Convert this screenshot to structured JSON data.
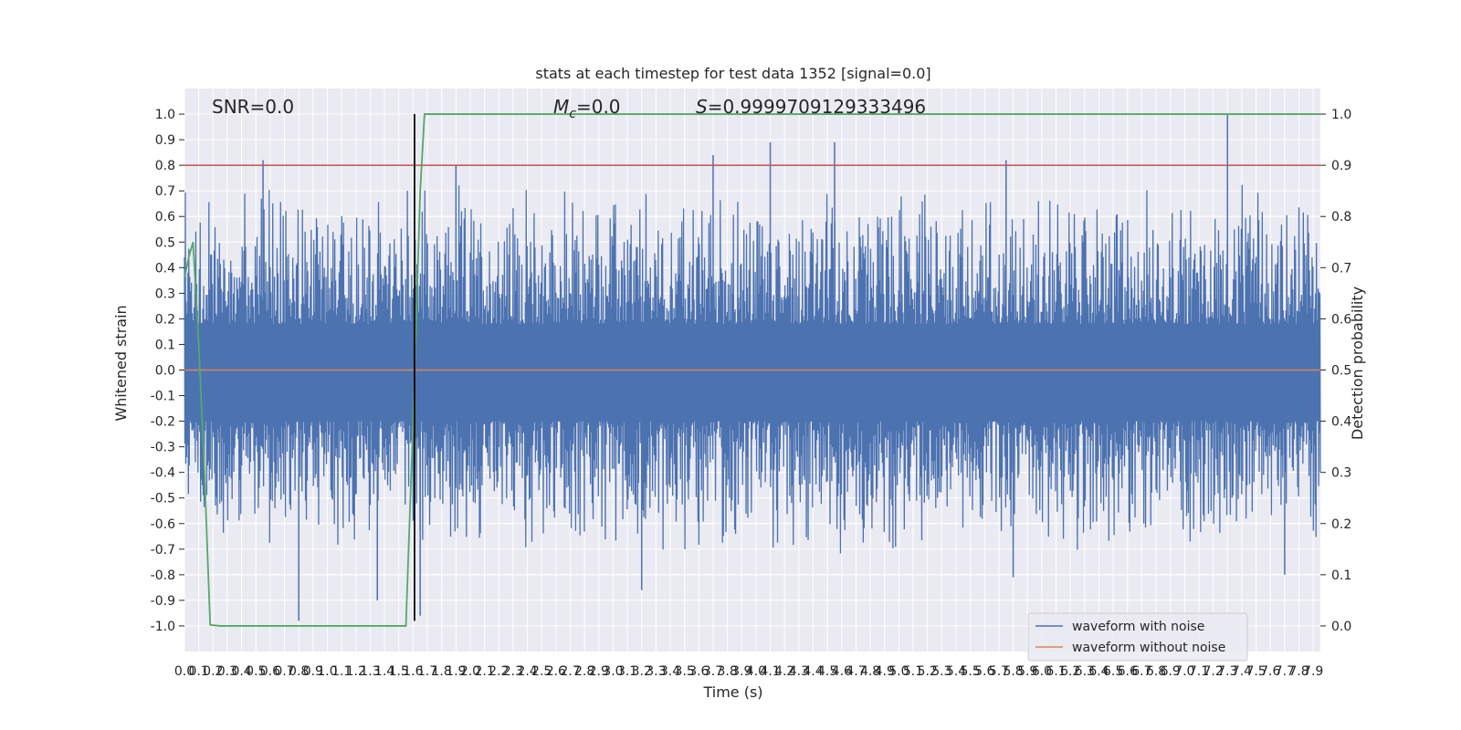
{
  "chart_data": {
    "type": "line",
    "title": "stats at each timestep for test data 1352 [signal=0.0]",
    "xlabel": "Time (s)",
    "ylabel": "Whitened strain",
    "ylabel_right": "Detection probability",
    "xlim": [
      0.0,
      7.95
    ],
    "ylim": [
      -1.1,
      1.1
    ],
    "ylim_right": [
      -0.05,
      1.05
    ],
    "x_ticks": [
      "0.0",
      "0.1",
      "0.2",
      "0.3",
      "0.4",
      "0.5",
      "0.6",
      "0.7",
      "0.8",
      "0.9",
      "1.0",
      "1.1",
      "1.2",
      "1.3",
      "1.4",
      "1.5",
      "1.6",
      "1.7",
      "1.8",
      "1.9",
      "2.0",
      "2.1",
      "2.2",
      "2.3",
      "2.4",
      "2.5",
      "2.6",
      "2.7",
      "2.8",
      "2.9",
      "3.0",
      "3.1",
      "3.2",
      "3.3",
      "3.4",
      "3.5",
      "3.6",
      "3.7",
      "3.8",
      "3.9",
      "4.0",
      "4.1",
      "4.2",
      "4.3",
      "4.4",
      "4.5",
      "4.6",
      "4.7",
      "4.8",
      "4.9",
      "5.0",
      "5.1",
      "5.2",
      "5.3",
      "5.4",
      "5.5",
      "5.6",
      "5.7",
      "5.8",
      "5.9",
      "6.0",
      "6.1",
      "6.2",
      "6.3",
      "6.4",
      "6.5",
      "6.6",
      "6.7",
      "6.8",
      "6.9",
      "7.0",
      "7.1",
      "7.2",
      "7.3",
      "7.4",
      "7.5",
      "7.6",
      "7.7",
      "7.8",
      "7.9"
    ],
    "y_ticks": [
      "1.0",
      "0.9",
      "0.8",
      "0.7",
      "0.6",
      "0.5",
      "0.4",
      "0.3",
      "0.2",
      "0.1",
      "0.0",
      "-0.1",
      "-0.2",
      "-0.3",
      "-0.4",
      "-0.5",
      "-0.6",
      "-0.7",
      "-0.8",
      "-0.9",
      "-1.0"
    ],
    "y_ticks_right": [
      "1.0",
      "0.9",
      "0.8",
      "0.7",
      "0.6",
      "0.5",
      "0.4",
      "0.3",
      "0.2",
      "0.1",
      "0.0"
    ],
    "annotations": {
      "snr": "SNR=0.0",
      "mc_symbol": "M",
      "mc_subscript": "c",
      "mc_value": "=0.0",
      "s_symbol": "S",
      "s_value": "=0.9999709129333496"
    },
    "series": [
      {
        "name": "waveform with noise",
        "color": "#4c72b0",
        "axis": "left",
        "description_values": "dense noise, roughly within [-0.98, 1.0]",
        "peaks": [
          {
            "x": 0.55,
            "y": 0.82
          },
          {
            "x": 1.9,
            "y": 0.8
          },
          {
            "x": 3.7,
            "y": 0.84
          },
          {
            "x": 4.1,
            "y": 0.89
          },
          {
            "x": 4.55,
            "y": 0.89
          },
          {
            "x": 5.75,
            "y": 0.82
          },
          {
            "x": 7.3,
            "y": 1.0
          },
          {
            "x": 0.8,
            "y": -0.98
          },
          {
            "x": 1.35,
            "y": -0.9
          },
          {
            "x": 1.65,
            "y": -0.96
          },
          {
            "x": 3.2,
            "y": -0.86
          },
          {
            "x": 5.8,
            "y": -0.81
          },
          {
            "x": 7.7,
            "y": -0.8
          }
        ]
      },
      {
        "name": "waveform without noise",
        "color": "#dd8452",
        "axis": "left",
        "x": [
          0.0,
          7.95
        ],
        "y": [
          0.0,
          0.0
        ]
      },
      {
        "name": "",
        "color": "#55a868",
        "axis": "right",
        "x": [
          0.0,
          0.03,
          0.06,
          0.1,
          0.14,
          0.18,
          0.25,
          1.55,
          1.6,
          1.65,
          1.68,
          7.95
        ],
        "y": [
          0.68,
          0.72,
          0.75,
          0.55,
          0.3,
          0.002,
          0.0,
          0.0,
          0.4,
          0.85,
          1.0,
          1.0
        ]
      }
    ],
    "hlines": [
      {
        "y": 0.8,
        "color": "#c44e52",
        "axis": "left"
      }
    ],
    "vlines": [
      {
        "x": 1.61,
        "y0": -0.98,
        "y1": 1.0,
        "color": "#000000"
      }
    ],
    "legend": {
      "placement": "lower-right",
      "entries": [
        {
          "label": "waveform with noise",
          "color": "#4c72b0"
        },
        {
          "label": "waveform without noise",
          "color": "#dd8452"
        }
      ]
    },
    "grid": true,
    "style": {
      "plot_background": "#eaeaf2",
      "grid_color": "#ffffff"
    }
  }
}
